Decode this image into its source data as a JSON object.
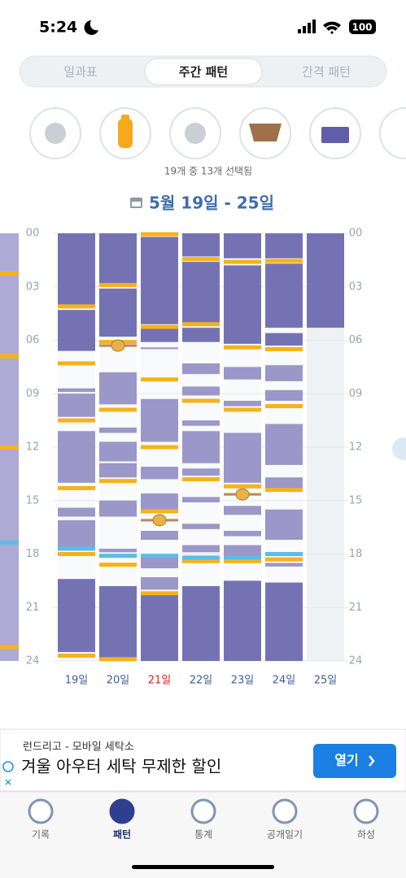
{
  "status": {
    "time": "5:24",
    "battery": "100"
  },
  "segments": {
    "items": [
      "일과표",
      "주간 패턴",
      "간격 패턴"
    ],
    "selected": 1
  },
  "filter_status": "19개 중 13개 선택됨",
  "date_range": "5월 19일 - 25일",
  "chart_data": {
    "type": "timeline",
    "ylim": [
      0,
      24
    ],
    "yticks": [
      {
        "value": 0,
        "label": "00"
      },
      {
        "value": 3,
        "label": "03"
      },
      {
        "value": 6,
        "label": "06"
      },
      {
        "value": 9,
        "label": "09"
      },
      {
        "value": 12,
        "label": "12"
      },
      {
        "value": 15,
        "label": "15"
      },
      {
        "value": 18,
        "label": "18"
      },
      {
        "value": 21,
        "label": "21"
      },
      {
        "value": 24,
        "label": "24"
      }
    ],
    "colors": {
      "night": "#7572b4",
      "nap": "#9b97c9",
      "feed": "#f6b21a",
      "other": "#5bbce8",
      "poop": "#e8b24a"
    },
    "days": [
      {
        "label": "19일",
        "label_color": "#3f5f9a",
        "night": [
          [
            0,
            4.0
          ],
          [
            4.3,
            6.6
          ],
          [
            19.4,
            23.5
          ]
        ],
        "nap": [
          [
            8.7,
            8.9
          ],
          [
            9.0,
            10.3
          ],
          [
            11.1,
            14.0
          ],
          [
            15.4,
            15.9
          ],
          [
            16.1,
            17.6
          ]
        ],
        "feed": [
          4.1,
          7.3,
          10.5,
          14.3,
          18.0,
          23.7
        ],
        "other": [
          17.7
        ],
        "poop": []
      },
      {
        "label": "20일",
        "label_color": "#3f5f9a",
        "night": [
          [
            0,
            2.9
          ],
          [
            3.1,
            5.8
          ],
          [
            19.8,
            23.9
          ]
        ],
        "nap": [
          [
            7.8,
            9.6
          ],
          [
            10.9,
            11.2
          ],
          [
            11.7,
            12.8
          ],
          [
            12.9,
            13.7
          ],
          [
            15.0,
            15.9
          ],
          [
            17.7,
            17.9
          ]
        ],
        "feed": [
          2.9,
          6.1,
          9.9,
          13.9,
          18.6,
          23.9
        ],
        "other": [
          18.1
        ],
        "poop": [
          6.3
        ]
      },
      {
        "label": "21일",
        "label_color": "#e02020",
        "night": [
          [
            0.2,
            5.1
          ],
          [
            5.3,
            6.1
          ],
          [
            20.3,
            24
          ]
        ],
        "nap": [
          [
            6.4,
            6.5
          ],
          [
            9.3,
            11.7
          ],
          [
            13.1,
            13.8
          ],
          [
            14.6,
            15.5
          ],
          [
            16.7,
            17.2
          ],
          [
            18.2,
            18.8
          ],
          [
            19.3,
            20.0
          ]
        ],
        "feed": [
          0.05,
          5.25,
          8.2,
          12.0,
          15.6,
          20.2
        ],
        "other": [
          18.1
        ],
        "poop": [
          16.1
        ]
      },
      {
        "label": "22일",
        "label_color": "#3f5f9a",
        "night": [
          [
            0,
            1.3
          ],
          [
            1.6,
            5.1
          ],
          [
            5.3,
            6.1
          ],
          [
            19.8,
            24
          ]
        ],
        "nap": [
          [
            7.3,
            7.9
          ],
          [
            8.6,
            9.1
          ],
          [
            10.5,
            10.8
          ],
          [
            11.1,
            12.9
          ],
          [
            13.2,
            13.6
          ],
          [
            14.8,
            15.1
          ],
          [
            16.3,
            16.6
          ],
          [
            17.5,
            17.9
          ]
        ],
        "feed": [
          1.45,
          5.1,
          9.4,
          13.8,
          18.4
        ],
        "other": [
          18.2
        ],
        "poop": []
      },
      {
        "label": "23일",
        "label_color": "#3f5f9a",
        "night": [
          [
            0,
            1.4
          ],
          [
            1.8,
            6.2
          ],
          [
            19.5,
            24
          ]
        ],
        "nap": [
          [
            7.5,
            8.2
          ],
          [
            9.4,
            9.7
          ],
          [
            11.2,
            14.0
          ],
          [
            15.3,
            15.8
          ],
          [
            16.7,
            17.0
          ],
          [
            17.5,
            18.1
          ]
        ],
        "feed": [
          1.6,
          6.4,
          9.9,
          14.2,
          18.4
        ],
        "other": [
          18.2
        ],
        "poop": [
          14.65
        ]
      },
      {
        "label": "24일",
        "label_color": "#3f5f9a",
        "night": [
          [
            0,
            1.4
          ],
          [
            1.7,
            5.3
          ],
          [
            5.6,
            6.3
          ],
          [
            19.6,
            24
          ]
        ],
        "nap": [
          [
            7.4,
            8.3
          ],
          [
            8.8,
            9.4
          ],
          [
            10.7,
            13.0
          ],
          [
            13.7,
            14.3
          ],
          [
            15.5,
            17.2
          ],
          [
            18.5,
            18.7
          ]
        ],
        "feed": [
          1.55,
          6.5,
          9.7,
          14.4,
          18.3
        ],
        "other": [
          18.0
        ],
        "poop": []
      },
      {
        "label": "25일",
        "label_color": "#3f5f9a",
        "night": [
          [
            0,
            5.3
          ]
        ],
        "nap": [],
        "feed": [],
        "other": [],
        "poop": []
      }
    ]
  },
  "ad": {
    "source": "런드리고 - 모바일 세탁소",
    "headline": "겨울 아우터 세탁 무제한 할인",
    "button": "열기"
  },
  "nav": [
    "기록",
    "패턴",
    "통계",
    "공개일기",
    "하성"
  ]
}
